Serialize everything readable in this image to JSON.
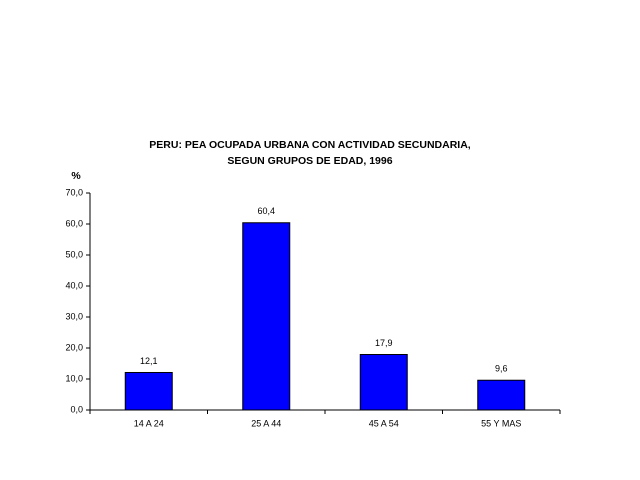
{
  "chart_data": {
    "type": "bar",
    "title": [
      "PERU: PEA OCUPADA URBANA CON ACTIVIDAD SECUNDARIA,",
      "SEGUN GRUPOS DE EDAD, 1996"
    ],
    "y_label": "%",
    "categories": [
      "14 A 24",
      "25 A 44",
      "45 A 54",
      "55 Y MAS"
    ],
    "values": [
      12.1,
      60.4,
      17.9,
      9.6
    ],
    "value_labels": [
      "12,1",
      "60,4",
      "17,9",
      "9,6"
    ],
    "color": "#0000ff",
    "ylim": [
      0,
      70
    ],
    "yticks": [
      {
        "value": 0,
        "label": "0,0"
      },
      {
        "value": 10,
        "label": "10,0"
      },
      {
        "value": 20,
        "label": "20,0"
      },
      {
        "value": 30,
        "label": "30,0"
      },
      {
        "value": 40,
        "label": "40,0"
      },
      {
        "value": 50,
        "label": "50,0"
      },
      {
        "value": 60,
        "label": "60,0"
      },
      {
        "value": 70,
        "label": "70,0"
      }
    ]
  }
}
